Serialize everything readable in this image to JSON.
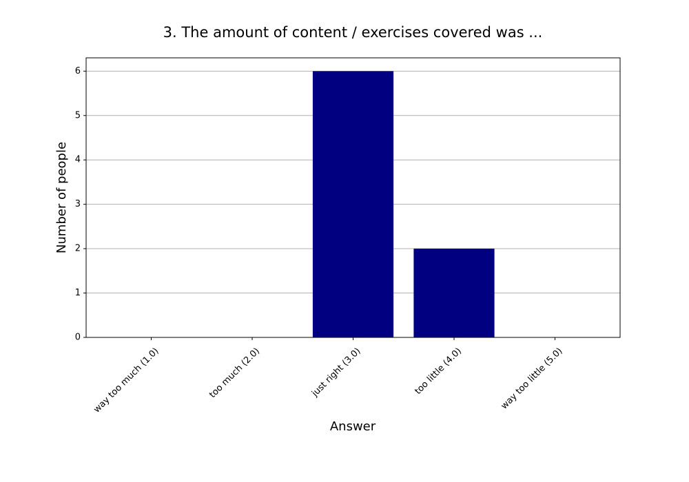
{
  "chart_data": {
    "type": "bar",
    "title": "3. The amount of content / exercises covered was ...",
    "x_label": "Answer",
    "y_label": "Number of people",
    "categories": [
      "way too much (1.0)",
      "too much (2.0)",
      "just right (3.0)",
      "too little (4.0)",
      "way too little (5.0)"
    ],
    "values": [
      0,
      0,
      6,
      2,
      0
    ],
    "color": "#000080",
    "ylim": [
      0,
      6.3
    ],
    "yticks": [
      0,
      1,
      2,
      3,
      4,
      5,
      6
    ],
    "grid": true
  }
}
